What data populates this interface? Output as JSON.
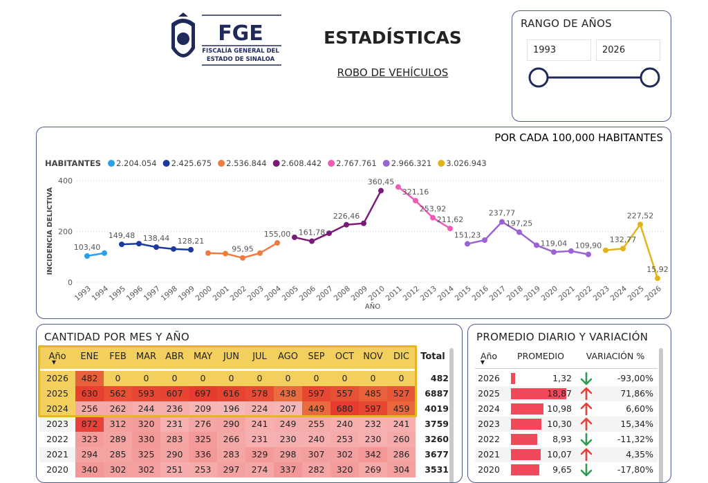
{
  "header": {
    "logo_title": "FGE",
    "logo_lines": [
      "FISCALÍA GENERAL DEL",
      "ESTADO DE SINALOA"
    ],
    "title": "ESTADÍSTICAS",
    "subtitle": "ROBO DE VEHÍCULOS"
  },
  "slicer": {
    "title": "RANGO DE AÑOS",
    "from": "1993",
    "to": "2026"
  },
  "chart_data": {
    "type": "line",
    "title": "POR CADA 100,000 HABITANTES",
    "legend_title": "HABITANTES",
    "y_label": "INCIDENCIA DELICTIVA",
    "x_label": "AÑO",
    "xlim": [
      1993,
      2026
    ],
    "xticks": [
      1993,
      1994,
      1995,
      1996,
      1997,
      1998,
      1999,
      2000,
      2001,
      2002,
      2003,
      2004,
      2005,
      2006,
      2007,
      2008,
      2009,
      2010,
      2011,
      2012,
      2013,
      2014,
      2015,
      2016,
      2017,
      2018,
      2019,
      2020,
      2021,
      2022,
      2023,
      2024,
      2025,
      2026
    ],
    "ylim": [
      0,
      400
    ],
    "yticks": [
      0,
      200,
      400
    ],
    "grid": true,
    "series": [
      {
        "name": "2.204.054",
        "color": "#2aa0ea",
        "x": [
          1993,
          1994
        ],
        "values": [
          103.4,
          115
        ],
        "value_labels": [
          "103,40",
          null
        ]
      },
      {
        "name": "2.425.675",
        "color": "#1c3a9e",
        "x": [
          1995,
          1996,
          1997,
          1998,
          1999
        ],
        "values": [
          149.48,
          152,
          138.44,
          131,
          128.21
        ],
        "value_labels": [
          "149,48",
          null,
          "138,44",
          null,
          "128,21"
        ]
      },
      {
        "name": "2.536.844",
        "color": "#f07b3f",
        "x": [
          2000,
          2001,
          2002,
          2003,
          2004
        ],
        "values": [
          115,
          113,
          95.95,
          115,
          155.0
        ],
        "value_labels": [
          null,
          null,
          "95,95",
          null,
          "155,00"
        ]
      },
      {
        "name": "2.608.442",
        "color": "#7a1a78",
        "x": [
          2005,
          2006,
          2007,
          2008,
          2009,
          2010
        ],
        "values": [
          177,
          161.78,
          193,
          226.46,
          232,
          360.45
        ],
        "value_labels": [
          null,
          "161,78",
          null,
          "226,46",
          null,
          "360,45"
        ]
      },
      {
        "name": "2.767.761",
        "color": "#f25ab8",
        "x": [
          2011,
          2012,
          2013,
          2014
        ],
        "values": [
          375,
          321.16,
          253.92,
          211.62
        ],
        "value_labels": [
          null,
          "321,16",
          "253,92",
          "211,62"
        ]
      },
      {
        "name": "2.966.321",
        "color": "#9a62d2",
        "x": [
          2015,
          2016,
          2017,
          2018,
          2019,
          2020,
          2021,
          2022
        ],
        "values": [
          151.23,
          166,
          237.77,
          197.25,
          146,
          119.04,
          123,
          109.9
        ],
        "value_labels": [
          "151,23",
          null,
          "237,77",
          "197,25",
          null,
          "119,04",
          null,
          "109,90"
        ]
      },
      {
        "name": "3.026.943",
        "color": "#e0b41a",
        "x": [
          2023,
          2024,
          2025,
          2026
        ],
        "values": [
          126,
          132.77,
          227.52,
          15.92
        ],
        "value_labels": [
          null,
          "132,77",
          "227,52",
          "15,92"
        ]
      }
    ]
  },
  "matrix": {
    "title": "CANTIDAD POR MES Y AÑO",
    "columns": [
      "Año",
      "ENE",
      "FEB",
      "MAR",
      "ABR",
      "MAY",
      "JUN",
      "JUL",
      "AGO",
      "SEP",
      "OCT",
      "NOV",
      "DIC",
      "Total"
    ],
    "rows": [
      [
        "2026",
        482,
        0,
        0,
        0,
        0,
        0,
        0,
        0,
        0,
        0,
        0,
        0,
        482
      ],
      [
        "2025",
        630,
        562,
        593,
        607,
        697,
        616,
        578,
        438,
        597,
        557,
        485,
        527,
        6887
      ],
      [
        "2024",
        256,
        262,
        244,
        236,
        209,
        196,
        224,
        207,
        449,
        680,
        597,
        459,
        4019
      ],
      [
        "2023",
        872,
        312,
        320,
        231,
        276,
        290,
        241,
        249,
        255,
        240,
        232,
        241,
        3759
      ],
      [
        "2022",
        323,
        289,
        330,
        283,
        325,
        266,
        231,
        230,
        240,
        253,
        230,
        260,
        3260
      ],
      [
        "2021",
        294,
        285,
        325,
        290,
        336,
        283,
        329,
        298,
        307,
        302,
        342,
        286,
        3677
      ],
      [
        "2020",
        340,
        302,
        302,
        251,
        253,
        297,
        274,
        337,
        282,
        320,
        269,
        304,
        3531
      ]
    ]
  },
  "daily": {
    "title": "PROMEDIO DIARIO Y VARIACIÓN",
    "columns": [
      "Año",
      "PROMEDIO",
      "VARIACIÓN %"
    ],
    "rows": [
      {
        "year": "2026",
        "average": {
          "value": 1.32,
          "label": "1,32"
        },
        "variation": {
          "value": -93.0,
          "label": "-93,00%"
        }
      },
      {
        "year": "2025",
        "average": {
          "value": 18.87,
          "label": "18,87"
        },
        "variation": {
          "value": 71.86,
          "label": "71,86%"
        }
      },
      {
        "year": "2024",
        "average": {
          "value": 10.98,
          "label": "10,98"
        },
        "variation": {
          "value": 6.6,
          "label": "6,60%"
        }
      },
      {
        "year": "2023",
        "average": {
          "value": 10.3,
          "label": "10,30"
        },
        "variation": {
          "value": 15.34,
          "label": "15,34%"
        }
      },
      {
        "year": "2022",
        "average": {
          "value": 8.93,
          "label": "8,93"
        },
        "variation": {
          "value": -11.32,
          "label": "-11,32%"
        }
      },
      {
        "year": "2021",
        "average": {
          "value": 10.07,
          "label": "10,07"
        },
        "variation": {
          "value": 4.35,
          "label": "4,35%"
        }
      },
      {
        "year": "2020",
        "average": {
          "value": 9.65,
          "label": "9,65"
        },
        "variation": {
          "value": -17.8,
          "label": "-17,80%"
        }
      }
    ]
  }
}
